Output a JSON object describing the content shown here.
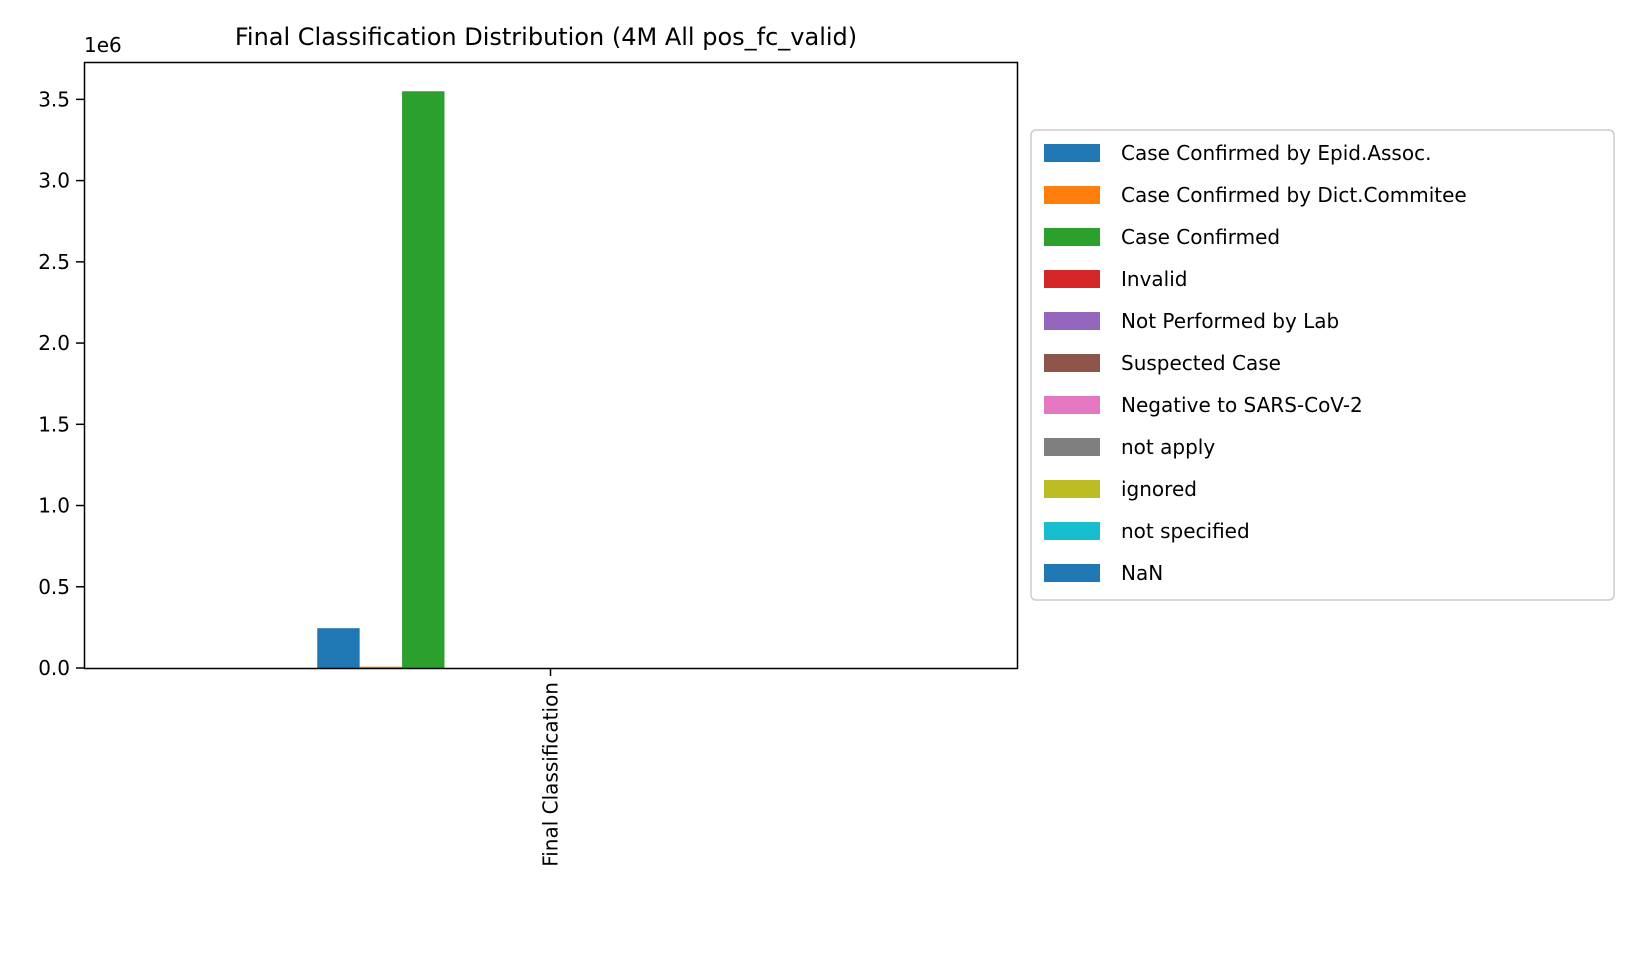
{
  "chart_data": {
    "type": "bar",
    "title": "Final Classification Distribution (4M All pos_fc_valid)",
    "categories": [
      "Final Classification"
    ],
    "offset_label": "1e6",
    "ylim": [
      0,
      3.73
    ],
    "yticks": [
      "0.0",
      "0.5",
      "1.0",
      "1.5",
      "2.0",
      "2.5",
      "3.0",
      "3.5"
    ],
    "grid": false,
    "legend_position": "outside-right",
    "series": [
      {
        "name": "Case Confirmed by Epid.Assoc.",
        "values": [
          0.245
        ],
        "color": "#1f77b4"
      },
      {
        "name": "Case Confirmed by Dict.Commitee",
        "values": [
          0.008
        ],
        "color": "#ff7f0e"
      },
      {
        "name": "Case Confirmed",
        "values": [
          3.55
        ],
        "color": "#2ca02c"
      },
      {
        "name": "Invalid",
        "values": [
          0
        ],
        "color": "#d62728"
      },
      {
        "name": "Not Performed by Lab",
        "values": [
          0
        ],
        "color": "#9467bd"
      },
      {
        "name": "Suspected Case",
        "values": [
          0
        ],
        "color": "#8c564b"
      },
      {
        "name": "Negative to SARS-CoV-2",
        "values": [
          0
        ],
        "color": "#e377c2"
      },
      {
        "name": "not apply",
        "values": [
          0
        ],
        "color": "#7f7f7f"
      },
      {
        "name": "ignored",
        "values": [
          0
        ],
        "color": "#bcbd22"
      },
      {
        "name": "not specified",
        "values": [
          0
        ],
        "color": "#17becf"
      },
      {
        "name": "NaN",
        "values": [
          0
        ],
        "color": "#1f77b4"
      }
    ]
  }
}
